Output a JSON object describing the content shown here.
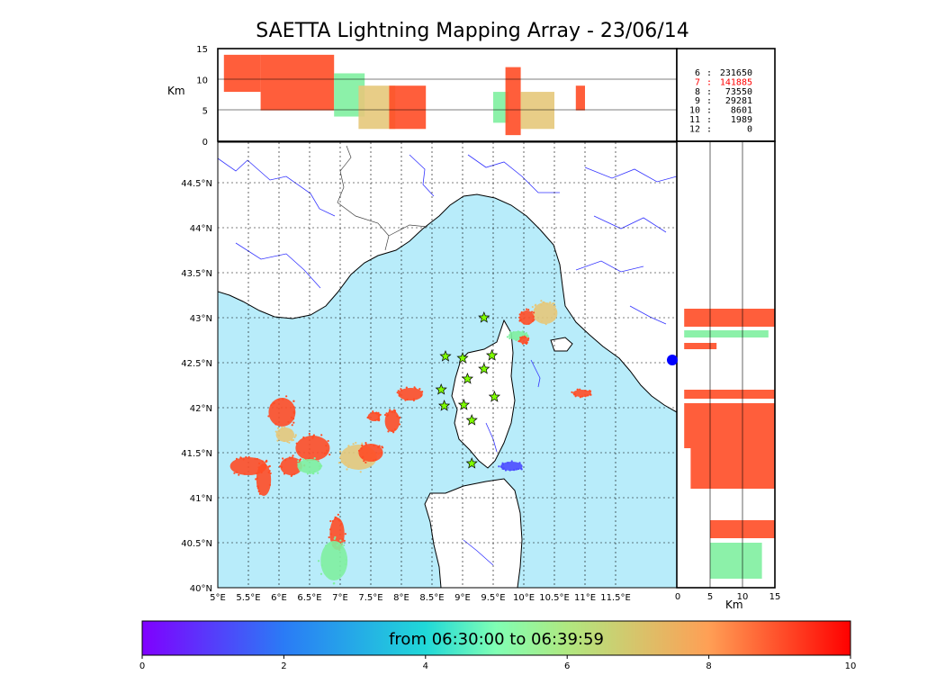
{
  "title": "SAETTA Lightning Mapping Array - 23/06/14",
  "colors": {
    "sea": "#b8ecfa",
    "land": "#ffffff",
    "rivers": "#3333ff",
    "borders": "#444444",
    "stars": "#7fff00"
  },
  "map": {
    "lon_range": [
      5.0,
      12.5
    ],
    "lat_range": [
      40.0,
      44.95
    ],
    "lon_ticks": [
      "5°E",
      "5.5°E",
      "6°E",
      "6.5°E",
      "7°E",
      "7.5°E",
      "8°E",
      "8.5°E",
      "9°E",
      "9.5°E",
      "10°E",
      "10.5°E",
      "11°E",
      "11.5°E"
    ],
    "lat_ticks": [
      "40°N",
      "40.5°N",
      "41°N",
      "41.5°N",
      "42°N",
      "42.5°N",
      "43°N",
      "43.5°N",
      "44°N",
      "44.5°N"
    ],
    "stations": [
      [
        8.72,
        42.57
      ],
      [
        9.0,
        42.55
      ],
      [
        9.08,
        42.32
      ],
      [
        8.65,
        42.2
      ],
      [
        8.7,
        42.02
      ],
      [
        9.02,
        42.03
      ],
      [
        9.15,
        41.86
      ],
      [
        9.35,
        42.43
      ],
      [
        9.48,
        42.58
      ],
      [
        9.52,
        42.12
      ],
      [
        9.35,
        43.0
      ],
      [
        9.15,
        41.38
      ]
    ],
    "lightning_clusters": [
      {
        "lon": 5.5,
        "lat": 41.35,
        "rx": 0.3,
        "ry": 0.1,
        "color": "#ff4d26"
      },
      {
        "lon": 5.75,
        "lat": 41.2,
        "rx": 0.12,
        "ry": 0.18,
        "color": "#ff4d26"
      },
      {
        "lon": 6.05,
        "lat": 41.95,
        "rx": 0.22,
        "ry": 0.16,
        "color": "#ff4d26"
      },
      {
        "lon": 6.1,
        "lat": 41.7,
        "rx": 0.15,
        "ry": 0.08,
        "color": "#e6c87a"
      },
      {
        "lon": 6.2,
        "lat": 41.35,
        "rx": 0.18,
        "ry": 0.1,
        "color": "#ff4d26"
      },
      {
        "lon": 6.55,
        "lat": 41.55,
        "rx": 0.28,
        "ry": 0.14,
        "color": "#ff4d26"
      },
      {
        "lon": 6.5,
        "lat": 41.35,
        "rx": 0.2,
        "ry": 0.08,
        "color": "#80f0a0"
      },
      {
        "lon": 7.3,
        "lat": 41.45,
        "rx": 0.3,
        "ry": 0.14,
        "color": "#e6c87a"
      },
      {
        "lon": 7.5,
        "lat": 41.5,
        "rx": 0.2,
        "ry": 0.1,
        "color": "#ff4d26"
      },
      {
        "lon": 7.85,
        "lat": 41.85,
        "rx": 0.12,
        "ry": 0.12,
        "color": "#ff4d26"
      },
      {
        "lon": 7.55,
        "lat": 41.9,
        "rx": 0.1,
        "ry": 0.05,
        "color": "#ff4d26"
      },
      {
        "lon": 6.95,
        "lat": 40.6,
        "rx": 0.12,
        "ry": 0.18,
        "color": "#ff4d26"
      },
      {
        "lon": 6.9,
        "lat": 40.3,
        "rx": 0.22,
        "ry": 0.22,
        "color": "#80f0a0"
      },
      {
        "lon": 8.15,
        "lat": 42.15,
        "rx": 0.2,
        "ry": 0.07,
        "color": "#ff4d26"
      },
      {
        "lon": 9.8,
        "lat": 41.35,
        "rx": 0.18,
        "ry": 0.05,
        "color": "#4d4dff"
      },
      {
        "lon": 10.35,
        "lat": 43.05,
        "rx": 0.2,
        "ry": 0.12,
        "color": "#e6c87a"
      },
      {
        "lon": 10.05,
        "lat": 43.0,
        "rx": 0.12,
        "ry": 0.08,
        "color": "#ff4d26"
      },
      {
        "lon": 9.9,
        "lat": 42.8,
        "rx": 0.15,
        "ry": 0.05,
        "color": "#80f0a0"
      },
      {
        "lon": 10.0,
        "lat": 42.75,
        "rx": 0.07,
        "ry": 0.04,
        "color": "#ff4d26"
      },
      {
        "lon": 10.95,
        "lat": 42.16,
        "rx": 0.15,
        "ry": 0.04,
        "color": "#ff4d26"
      }
    ]
  },
  "top_panel": {
    "y_label": "Km",
    "y_ticks": [
      "0",
      "5",
      "10",
      "15"
    ]
  },
  "side_panel": {
    "x_label": "Km",
    "x_ticks": [
      "0",
      "5",
      "10",
      "15"
    ]
  },
  "stats": [
    {
      "label": "6",
      "value": "231650",
      "color": "#000000"
    },
    {
      "label": "7",
      "value": "141885",
      "color": "#ff0000"
    },
    {
      "label": "8",
      "value": "73550",
      "color": "#000000"
    },
    {
      "label": "9",
      "value": "29281",
      "color": "#000000"
    },
    {
      "label": "10",
      "value": "8601",
      "color": "#000000"
    },
    {
      "label": "11",
      "value": "1989",
      "color": "#000000"
    },
    {
      "label": "12",
      "value": "0",
      "color": "#000000"
    }
  ],
  "colorbar": {
    "label": "from 06:30:00 to 06:39:59",
    "ticks": [
      "0",
      "2",
      "4",
      "6",
      "8",
      "10"
    ],
    "range": [
      0,
      10
    ]
  }
}
